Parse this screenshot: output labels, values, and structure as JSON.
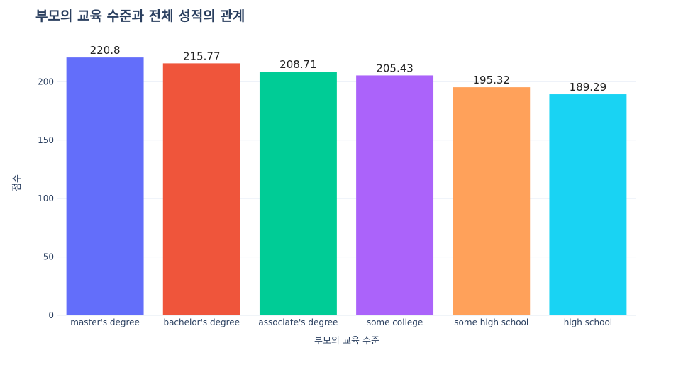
{
  "chart_data": {
    "type": "bar",
    "title": "부모의 교육 수준과 전체 성적의 관계",
    "xlabel": "부모의 교육 수준",
    "ylabel": "점수",
    "categories": [
      "master's degree",
      "bachelor's degree",
      "associate's degree",
      "some college",
      "some high school",
      "high school"
    ],
    "values": [
      220.8,
      215.77,
      208.71,
      205.43,
      195.32,
      189.29
    ],
    "data_labels": [
      "220.8",
      "215.77",
      "208.71",
      "205.43",
      "195.32",
      "189.29"
    ],
    "colors": [
      "#636efa",
      "#ef553b",
      "#00cc96",
      "#ab63fa",
      "#ffa15a",
      "#19d3f3"
    ],
    "yticks": [
      0,
      50,
      100,
      150,
      200
    ],
    "ytick_labels": [
      "0",
      "50",
      "100",
      "150",
      "200"
    ],
    "ylim": [
      0,
      232.4
    ],
    "grid": true,
    "legend": "none"
  }
}
